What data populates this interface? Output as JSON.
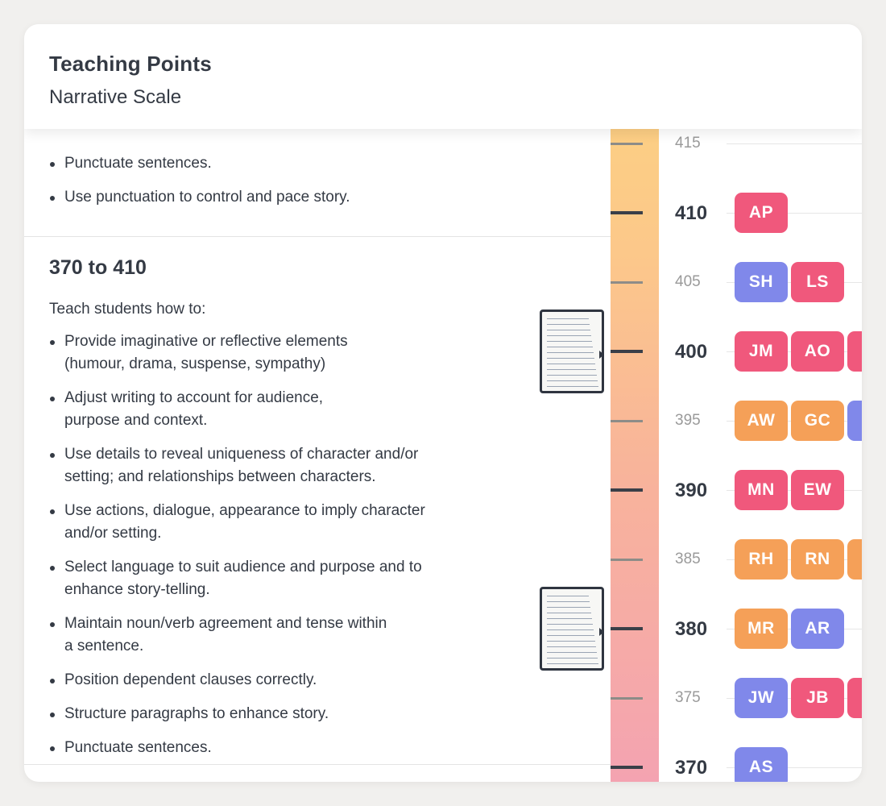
{
  "header": {
    "title": "Teaching Points",
    "subtitle": "Narrative Scale"
  },
  "prev_section": {
    "bullets": [
      "Punctuate sentences.",
      "Use punctuation to control and pace story."
    ]
  },
  "section": {
    "title": "370 to 410",
    "intro": "Teach students how to:",
    "bullets": [
      [
        "Provide imaginative or reflective elements",
        "(humour, drama, suspense, sympathy)"
      ],
      [
        "Adjust writing to account for audience,",
        "purpose and context."
      ],
      [
        "Use details to reveal uniqueness of character and/or",
        "setting; and relationships between characters."
      ],
      [
        "Use actions, dialogue, appearance to imply character",
        "and/or setting."
      ],
      [
        "Select language to suit audience and purpose and to",
        "enhance story-telling."
      ],
      [
        "Maintain noun/verb agreement and tense within",
        "a sentence."
      ],
      [
        "Position dependent clauses correctly."
      ],
      [
        "Structure paragraphs to enhance story."
      ],
      [
        "Punctuate sentences."
      ]
    ]
  },
  "work_samples": [
    {
      "score": 400
    },
    {
      "score": 380
    }
  ],
  "scale_labels": [
    "415",
    "410",
    "405",
    "400",
    "395",
    "390",
    "385",
    "380",
    "375",
    "370"
  ],
  "students": {
    "410": [
      {
        "initials": "AP",
        "color": "pink"
      }
    ],
    "405": [
      {
        "initials": "SH",
        "color": "purple"
      },
      {
        "initials": "LS",
        "color": "pink"
      }
    ],
    "400": [
      {
        "initials": "JM",
        "color": "pink"
      },
      {
        "initials": "AO",
        "color": "pink"
      },
      {
        "initials": "",
        "color": "pink"
      }
    ],
    "395": [
      {
        "initials": "AW",
        "color": "orange"
      },
      {
        "initials": "GC",
        "color": "orange"
      },
      {
        "initials": "",
        "color": "purple"
      }
    ],
    "390": [
      {
        "initials": "MN",
        "color": "pink"
      },
      {
        "initials": "EW",
        "color": "pink"
      }
    ],
    "385": [
      {
        "initials": "RH",
        "color": "orange"
      },
      {
        "initials": "RN",
        "color": "orange"
      },
      {
        "initials": "",
        "color": "orange"
      }
    ],
    "380": [
      {
        "initials": "MR",
        "color": "orange"
      },
      {
        "initials": "AR",
        "color": "purple"
      }
    ],
    "375": [
      {
        "initials": "JW",
        "color": "purple"
      },
      {
        "initials": "JB",
        "color": "pink"
      },
      {
        "initials": "",
        "color": "pink"
      }
    ],
    "370": [
      {
        "initials": "AS",
        "color": "purple"
      }
    ]
  },
  "colors": {
    "pink": "#f0587c",
    "orange": "#f5a058",
    "purple": "#8088ea",
    "gradient_top": "#fdd47f",
    "gradient_bottom": "#f4a3b1"
  }
}
